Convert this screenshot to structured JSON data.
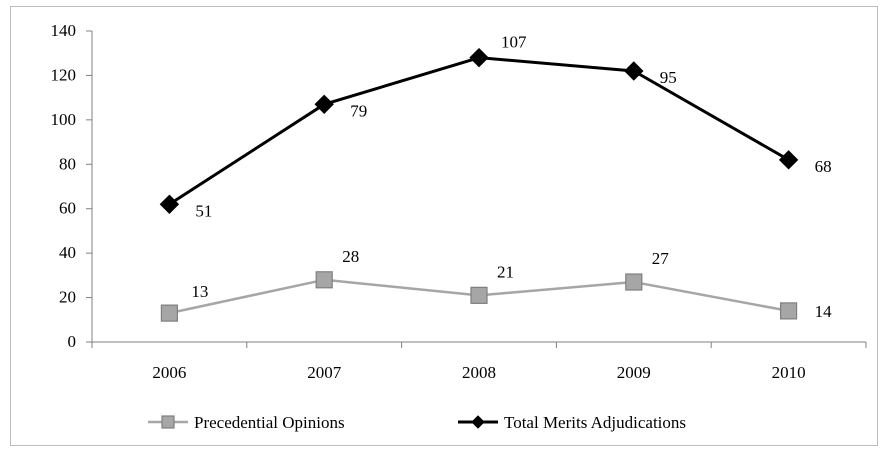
{
  "chart_data": {
    "type": "line",
    "categories": [
      "2006",
      "2007",
      "2008",
      "2009",
      "2010"
    ],
    "ylim": [
      0,
      140
    ],
    "yticks": [
      0,
      20,
      40,
      60,
      80,
      100,
      120,
      140
    ],
    "grid": false,
    "legend_position": "bottom",
    "series": [
      {
        "name": "Precedential Opinions",
        "values": [
          13,
          28,
          21,
          27,
          14
        ],
        "labels": [
          "13",
          "28",
          "21",
          "27",
          "14"
        ],
        "color": "#a6a6a6",
        "marker": "square"
      },
      {
        "name": "Total Merits Adjudications",
        "values": [
          62,
          107,
          128,
          122,
          82
        ],
        "labels": [
          "51",
          "79",
          "107",
          "95",
          "68"
        ],
        "color": "#000000",
        "marker": "diamond"
      }
    ]
  }
}
